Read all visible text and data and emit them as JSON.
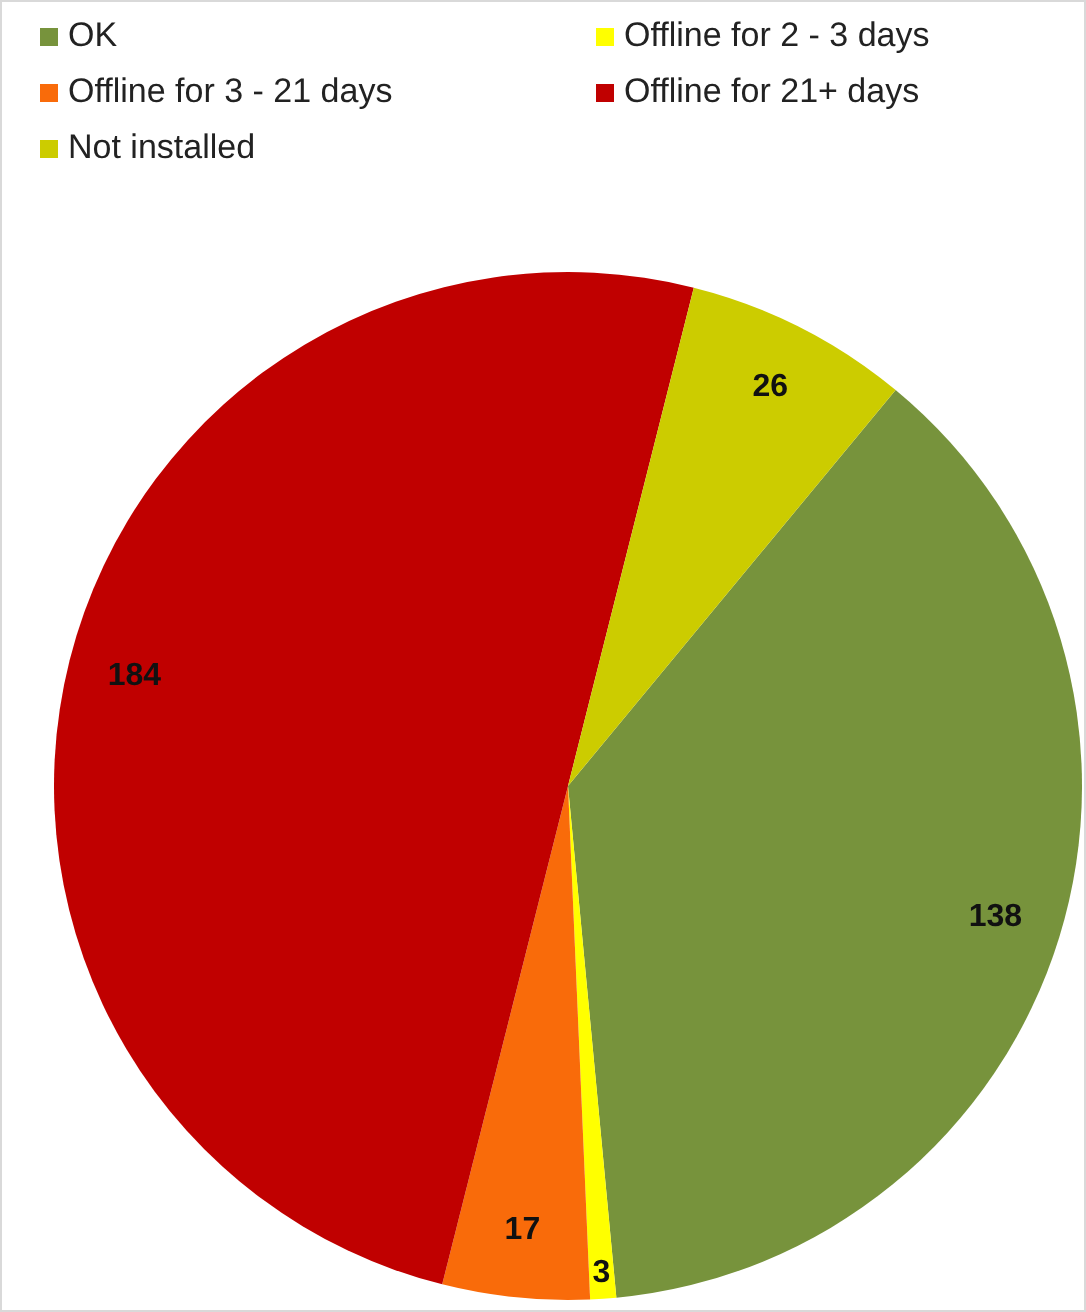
{
  "chart_data": {
    "type": "pie",
    "categories": [
      "OK",
      "Offline for 2 - 3 days",
      "Offline for 3 - 21 days",
      "Offline for 21+ days",
      "Not installed"
    ],
    "values": [
      138,
      3,
      17,
      184,
      26
    ],
    "colors": [
      "#77933c",
      "#ffff00",
      "#f96b0a",
      "#c00000",
      "#cccc00"
    ],
    "data_labels": true,
    "legend": "top"
  }
}
